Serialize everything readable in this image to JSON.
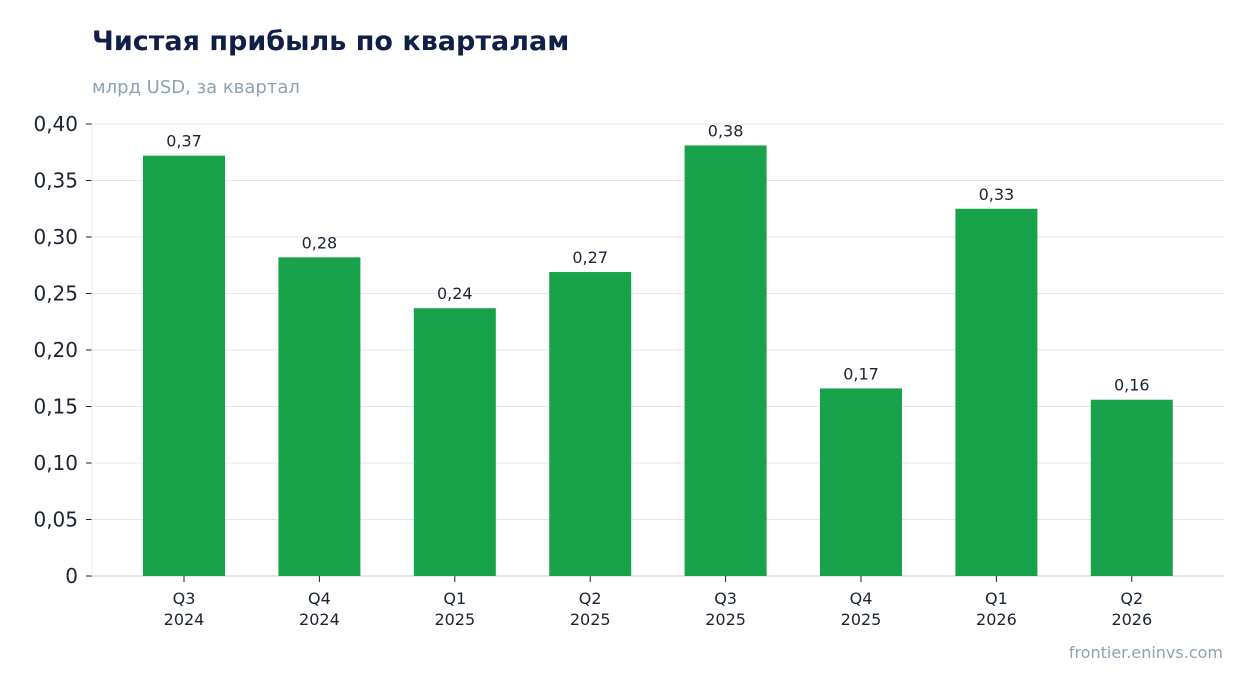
{
  "header": {
    "title": "Чистая прибыль по кварталам",
    "subtitle": "млрд USD, за квартал"
  },
  "footer": {
    "source": "frontier.eninvs.com"
  },
  "colors": {
    "bar": "#18a34a",
    "grid": "#e3e7ec",
    "axis": "#c9ced6",
    "text": "#1c2333"
  },
  "chart_data": {
    "type": "bar",
    "title": "Чистая прибыль по кварталам",
    "subtitle": "млрд USD, за квартал",
    "categories": [
      [
        "Q3",
        "2024"
      ],
      [
        "Q4",
        "2024"
      ],
      [
        "Q1",
        "2025"
      ],
      [
        "Q2",
        "2025"
      ],
      [
        "Q3",
        "2025"
      ],
      [
        "Q4",
        "2025"
      ],
      [
        "Q1",
        "2026"
      ],
      [
        "Q2",
        "2026"
      ]
    ],
    "values": [
      0.372,
      0.282,
      0.237,
      0.269,
      0.381,
      0.166,
      0.325,
      0.156
    ],
    "data_labels": [
      "0,37",
      "0,28",
      "0,24",
      "0,27",
      "0,38",
      "0,17",
      "0,33",
      "0,16"
    ],
    "ylim": [
      0,
      0.4
    ],
    "yticks": [
      0,
      0.05,
      0.1,
      0.15,
      0.2,
      0.25,
      0.3,
      0.35,
      0.4
    ],
    "ytick_labels": [
      "0",
      "0,05",
      "0,10",
      "0,15",
      "0,20",
      "0,25",
      "0,30",
      "0,35",
      "0,40"
    ],
    "grid": true,
    "legend": "none"
  }
}
